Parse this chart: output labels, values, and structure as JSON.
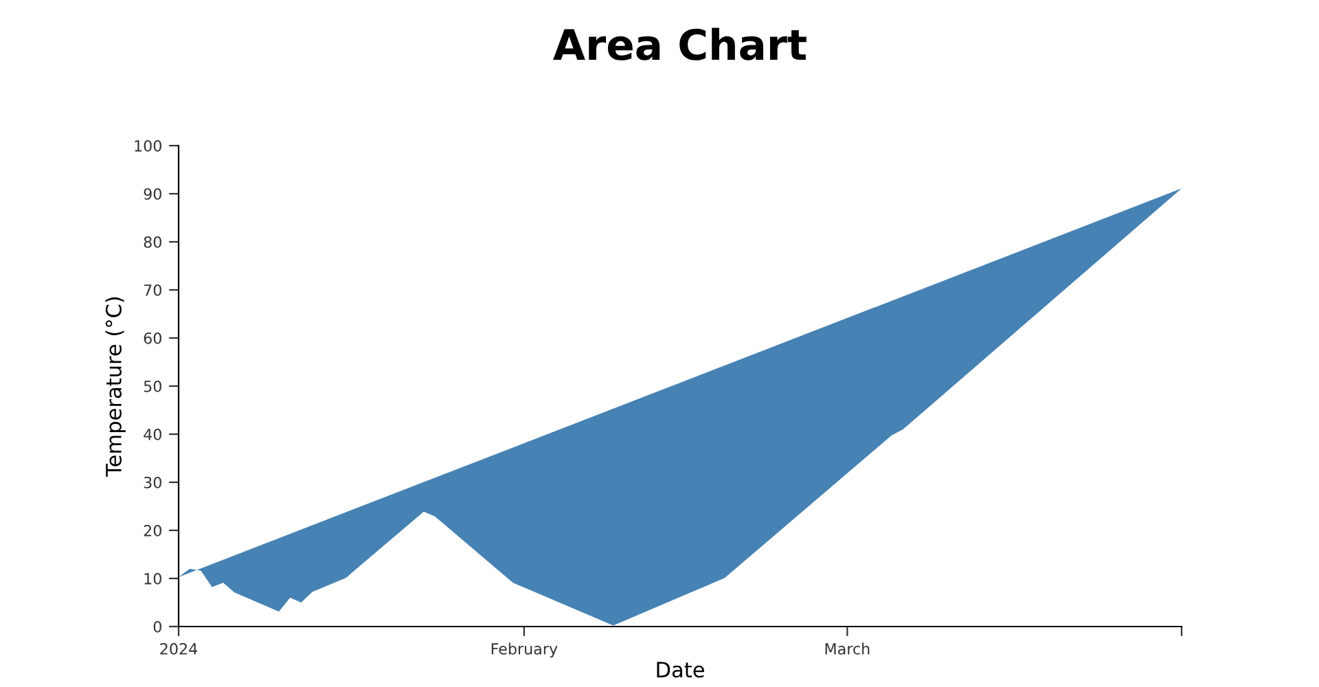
{
  "chart_data": {
    "type": "area",
    "title": "Area Chart",
    "xlabel": "Date",
    "ylabel": "Temperature (°C)",
    "x": [
      "2024-01-01",
      "2024-01-02",
      "2024-01-03",
      "2024-01-04",
      "2024-01-05",
      "2024-01-06",
      "2024-01-10",
      "2024-01-11",
      "2024-01-12",
      "2024-01-13",
      "2024-01-16",
      "2024-01-23",
      "2024-01-24",
      "2024-01-31",
      "2024-02-09",
      "2024-02-19",
      "2024-03-05",
      "2024-03-06",
      "2024-03-31"
    ],
    "series": [
      {
        "color": "#4682b4",
        "values": [
          10.3,
          12,
          11.6,
          8.2,
          9.1,
          7.1,
          3.1,
          6,
          5,
          7.2,
          10.1,
          23.9,
          22.9,
          9.1,
          0.2,
          10.1,
          39.8,
          41,
          91.1
        ]
      }
    ],
    "xlim": [
      "2024-01-01",
      "2024-03-31"
    ],
    "xticks": [
      {
        "value": "2024-01-01",
        "label": "2024"
      },
      {
        "value": "2024-02-01",
        "label": "February"
      },
      {
        "value": "2024-03-01",
        "label": "March"
      },
      {
        "value": "2024-03-31",
        "label": null
      }
    ],
    "ylim": [
      0,
      100
    ],
    "yticks": [
      0,
      10,
      20,
      30,
      40,
      50,
      60,
      70,
      80,
      90,
      100
    ],
    "grid": false,
    "legend": false
  }
}
